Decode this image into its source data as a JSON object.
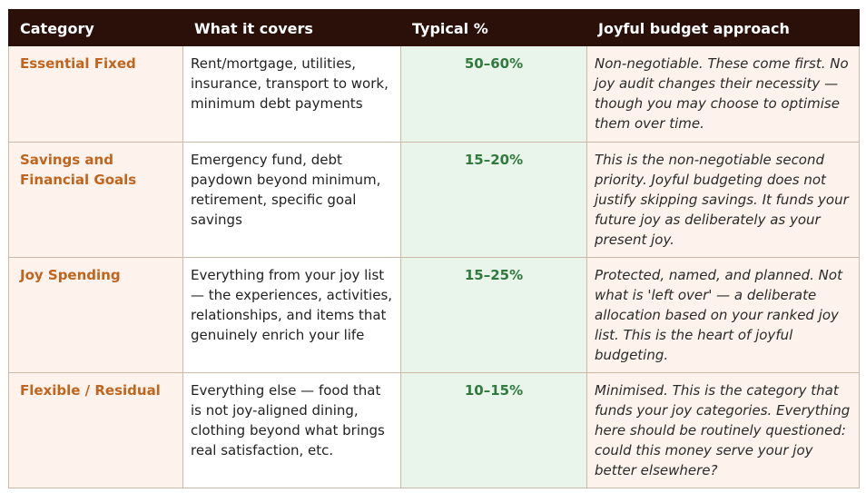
{
  "table": {
    "headers": [
      "Category",
      "What it covers",
      "Typical %",
      "Joyful budget approach"
    ],
    "rows": [
      {
        "category": "Essential Fixed",
        "covers": "Rent/mortgage, utilities, insurance, transport to work, minimum debt payments",
        "typical": "50–60%",
        "approach": "Non-negotiable. These come first. No joy audit changes their necessity — though you may choose to optimise them over time."
      },
      {
        "category": "Savings and Financial Goals",
        "covers": "Emergency fund, debt paydown beyond minimum, retirement, specific goal savings",
        "typical": "15–20%",
        "approach": "This is the non-negotiable second priority. Joyful budgeting does not justify skipping savings. It funds your future joy as deliberately as your present joy."
      },
      {
        "category": "Joy Spending",
        "covers": "Everything from your joy list — the experiences, activities, relationships, and items that genuinely enrich your life",
        "typical": "15–25%",
        "approach": "Protected, named, and planned. Not what is 'left over' — a deliberate allocation based on your ranked joy list. This is the heart of joyful budgeting."
      },
      {
        "category": "Flexible / Residual",
        "covers": "Everything else — food that is not joy-aligned dining, clothing beyond what brings real satisfaction, etc.",
        "typical": "10–15%",
        "approach": "Minimised. This is the category that funds your joy categories. Everything here should be routinely questioned: could this money serve your joy better elsewhere?"
      }
    ]
  }
}
